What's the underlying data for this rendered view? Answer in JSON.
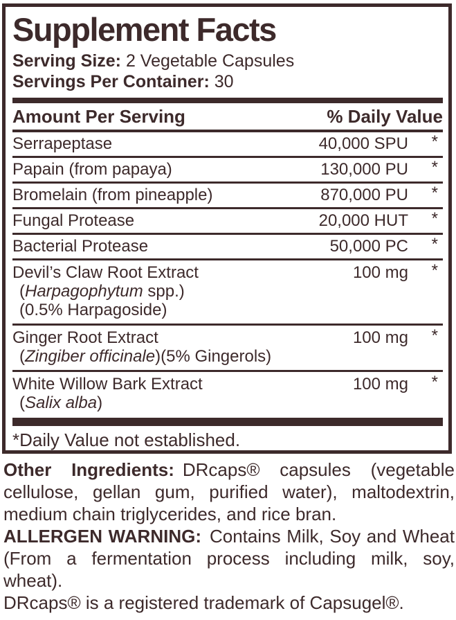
{
  "colors": {
    "ink": "#3D2A2B",
    "background": "#FFFFFF"
  },
  "panel": {
    "title": "Supplement Facts",
    "serving_size": {
      "label": "Serving Size:",
      "value": "2 Vegetable Capsules"
    },
    "servings_per_container": {
      "label": "Servings Per Container:",
      "value": "30"
    },
    "columns": {
      "amount": "Amount Per Serving",
      "daily_value": "% Daily Value"
    },
    "rows": [
      {
        "name": "Serrapeptase",
        "amount": "40,000 SPU",
        "daily_value": "*"
      },
      {
        "name": "Papain (from papaya)",
        "amount": "130,000 PU",
        "daily_value": "*"
      },
      {
        "name": "Bromelain (from pineapple)",
        "amount": "870,000 PU",
        "daily_value": "*"
      },
      {
        "name": "Fungal Protease",
        "amount": "20,000 HUT",
        "daily_value": "*"
      },
      {
        "name": "Bacterial Protease",
        "amount": "50,000 PC",
        "daily_value": "*"
      },
      {
        "name": "Devil’s Claw Root Extract",
        "amount": "100 mg",
        "daily_value": "*",
        "sub_lines": [
          [
            {
              "t": "("
            },
            {
              "t": "Harpagophytum",
              "i": true
            },
            {
              "t": " spp.)"
            }
          ],
          [
            {
              "t": "(0.5% Harpagoside)"
            }
          ]
        ]
      },
      {
        "name": "Ginger Root Extract",
        "amount": "100 mg",
        "daily_value": "*",
        "sub_lines": [
          [
            {
              "t": "("
            },
            {
              "t": "Zingiber officinale",
              "i": true
            },
            {
              "t": ")(5% Gingerols)"
            }
          ]
        ]
      },
      {
        "name": "White Willow Bark Extract",
        "amount": "100 mg",
        "daily_value": "*",
        "sub_lines": [
          [
            {
              "t": "("
            },
            {
              "t": "Salix alba",
              "i": true
            },
            {
              "t": ")"
            }
          ]
        ]
      }
    ],
    "footnote": "*Daily Value not established."
  },
  "footer": {
    "paragraphs": [
      {
        "name": "other-ingredients",
        "justify": true,
        "segments": [
          {
            "t": "Other Ingredients:",
            "b": true
          },
          {
            "t": "DRcaps® capsules (vegetable cellulose, gellan gum, purified water), maltodextrin, medium chain triglycerides, and rice bran."
          }
        ]
      },
      {
        "name": "allergen-warning",
        "justify": true,
        "segments": [
          {
            "t": "ALLERGEN WARNING:",
            "b": true
          },
          {
            "t": "Contains Milk, Soy and Wheat (From a fermentation process including milk, soy, wheat)."
          }
        ]
      },
      {
        "name": "trademark-note",
        "justify": false,
        "segments": [
          {
            "t": "DRcaps® is a registered trademark of Capsugel®."
          }
        ]
      }
    ]
  }
}
